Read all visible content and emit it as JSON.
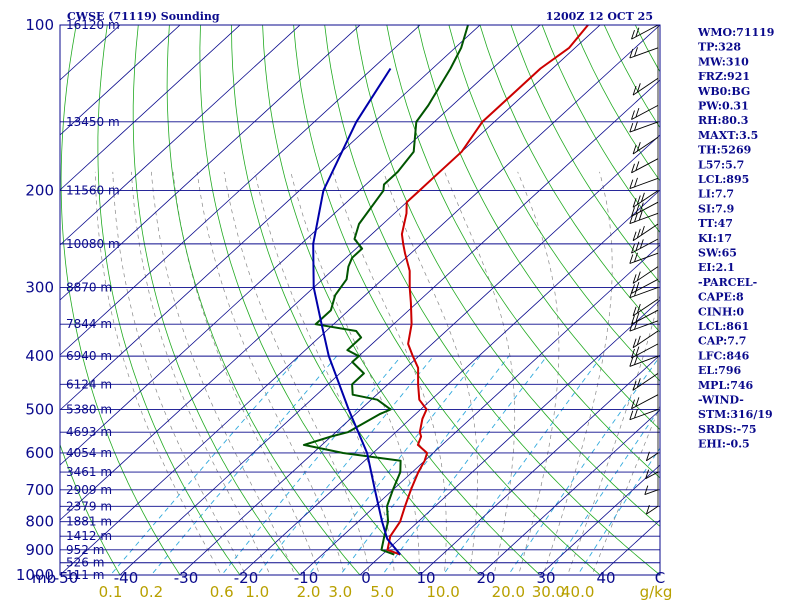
{
  "title_left": "CWSE (71119) Sounding",
  "title_right": "1200Z 12 OCT 25",
  "chart_data": {
    "type": "skew-t",
    "pressure_axis": {
      "unit_label": "mb",
      "range": [
        1000,
        100
      ],
      "ticks": [
        {
          "p": 100,
          "label": "100"
        },
        {
          "p": 200,
          "label": "200"
        },
        {
          "p": 300,
          "label": "300"
        },
        {
          "p": 400,
          "label": "400"
        },
        {
          "p": 500,
          "label": "500"
        },
        {
          "p": 600,
          "label": "600"
        },
        {
          "p": 700,
          "label": "700"
        },
        {
          "p": 800,
          "label": "800"
        },
        {
          "p": 900,
          "label": "900"
        },
        {
          "p": 1000,
          "label": "1000"
        }
      ]
    },
    "heights": [
      {
        "p": 100,
        "label": "16120 m"
      },
      {
        "p": 150,
        "label": "13450 m"
      },
      {
        "p": 200,
        "label": "11560 m"
      },
      {
        "p": 250,
        "label": "10080 m"
      },
      {
        "p": 300,
        "label": "8870 m"
      },
      {
        "p": 350,
        "label": "7844 m"
      },
      {
        "p": 400,
        "label": "6940 m"
      },
      {
        "p": 450,
        "label": "6124 m"
      },
      {
        "p": 500,
        "label": "5380 m"
      },
      {
        "p": 550,
        "label": "4693 m"
      },
      {
        "p": 600,
        "label": "4054 m"
      },
      {
        "p": 650,
        "label": "3461 m"
      },
      {
        "p": 700,
        "label": "2909 m"
      },
      {
        "p": 750,
        "label": "2379 m"
      },
      {
        "p": 800,
        "label": "1881 m"
      },
      {
        "p": 850,
        "label": "1412 m"
      },
      {
        "p": 900,
        "label": "952 m"
      },
      {
        "p": 950,
        "label": "526 m"
      },
      {
        "p": 1000,
        "label": "111 m"
      }
    ],
    "temperature_axis": {
      "range": [
        -50,
        50
      ],
      "ticks": [
        "-50",
        "-40",
        "-30",
        "-20",
        "-10",
        "0",
        "10",
        "20",
        "30",
        "40"
      ],
      "wind_scale_label": "C"
    },
    "mixing_ratio_labels": [
      "0.1",
      "0.2",
      "0.6",
      "1.0",
      "2.0",
      "3.0",
      "5.0",
      "10.0",
      "20.0",
      "30.0",
      "40.0"
    ],
    "mixing_ratio_unit": "g/kg",
    "series": [
      {
        "name": "temperature",
        "color": "#cc0000",
        "points": [
          [
            918,
            3
          ],
          [
            900,
            0
          ],
          [
            850,
            -2
          ],
          [
            800,
            -3
          ],
          [
            750,
            -5
          ],
          [
            700,
            -7
          ],
          [
            650,
            -9
          ],
          [
            620,
            -10
          ],
          [
            600,
            -11
          ],
          [
            580,
            -14
          ],
          [
            560,
            -15
          ],
          [
            550,
            -16
          ],
          [
            520,
            -18
          ],
          [
            500,
            -19
          ],
          [
            480,
            -22
          ],
          [
            450,
            -25
          ],
          [
            420,
            -28
          ],
          [
            400,
            -31
          ],
          [
            380,
            -34
          ],
          [
            350,
            -37
          ],
          [
            320,
            -41
          ],
          [
            300,
            -44
          ],
          [
            280,
            -47
          ],
          [
            260,
            -51
          ],
          [
            250,
            -53
          ],
          [
            240,
            -55
          ],
          [
            220,
            -58
          ],
          [
            210,
            -60
          ],
          [
            200,
            -60
          ],
          [
            190,
            -60
          ],
          [
            170,
            -60
          ],
          [
            150,
            -62
          ],
          [
            140,
            -62
          ],
          [
            120,
            -62
          ],
          [
            110,
            -61
          ],
          [
            100,
            -62
          ]
        ]
      },
      {
        "name": "dewpoint",
        "color": "#005500",
        "points": [
          [
            918,
            2
          ],
          [
            900,
            -1
          ],
          [
            850,
            -3
          ],
          [
            800,
            -5
          ],
          [
            750,
            -8
          ],
          [
            700,
            -10
          ],
          [
            650,
            -12
          ],
          [
            620,
            -14
          ],
          [
            600,
            -25
          ],
          [
            580,
            -33
          ],
          [
            560,
            -30
          ],
          [
            550,
            -28
          ],
          [
            530,
            -27
          ],
          [
            510,
            -26
          ],
          [
            500,
            -25
          ],
          [
            480,
            -29
          ],
          [
            470,
            -34
          ],
          [
            450,
            -36
          ],
          [
            430,
            -36
          ],
          [
            410,
            -40
          ],
          [
            400,
            -40
          ],
          [
            390,
            -43
          ],
          [
            370,
            -43
          ],
          [
            360,
            -45
          ],
          [
            350,
            -53
          ],
          [
            330,
            -53
          ],
          [
            310,
            -55
          ],
          [
            290,
            -56
          ],
          [
            275,
            -58
          ],
          [
            265,
            -59
          ],
          [
            255,
            -59
          ],
          [
            245,
            -62
          ],
          [
            230,
            -64
          ],
          [
            200,
            -66
          ],
          [
            195,
            -67
          ],
          [
            185,
            -67
          ],
          [
            170,
            -68
          ],
          [
            150,
            -73
          ],
          [
            140,
            -74
          ],
          [
            120,
            -77
          ],
          [
            110,
            -79
          ],
          [
            100,
            -82
          ]
        ]
      },
      {
        "name": "parcel",
        "color": "#0000aa",
        "points": [
          [
            918,
            3
          ],
          [
            860,
            -2
          ],
          [
            800,
            -6
          ],
          [
            700,
            -13
          ],
          [
            600,
            -21
          ],
          [
            500,
            -32
          ],
          [
            400,
            -45
          ],
          [
            350,
            -52
          ],
          [
            300,
            -60
          ],
          [
            250,
            -68
          ],
          [
            200,
            -76
          ],
          [
            150,
            -83
          ],
          [
            120,
            -87
          ]
        ]
      }
    ],
    "wind_barbs": {
      "note": "wind barbs plotted along right edge",
      "levels_mb": [
        100,
        110,
        125,
        140,
        150,
        160,
        175,
        190,
        200,
        210,
        220,
        230,
        245,
        260,
        275,
        290,
        300,
        315,
        330,
        345,
        360,
        380,
        400,
        430,
        470,
        500,
        600,
        650,
        700,
        750
      ]
    }
  },
  "indices": [
    {
      "key": "WMO",
      "value": "71119"
    },
    {
      "key": "TP",
      "value": "328"
    },
    {
      "key": "MW",
      "value": "310"
    },
    {
      "key": "FRZ",
      "value": "921"
    },
    {
      "key": "WB0",
      "value": "BG"
    },
    {
      "key": "PW",
      "value": "0.31"
    },
    {
      "key": "RH",
      "value": "80.3"
    },
    {
      "key": "MAXT",
      "value": "3.5"
    },
    {
      "key": "TH",
      "value": "5269"
    },
    {
      "key": "L57",
      "value": "5.7"
    },
    {
      "key": "LCL",
      "value": "895"
    },
    {
      "key": "LI",
      "value": "7.7"
    },
    {
      "key": "SI",
      "value": "7.9"
    },
    {
      "key": "TT",
      "value": "47"
    },
    {
      "key": "KI",
      "value": "17"
    },
    {
      "key": "SW",
      "value": "65"
    },
    {
      "key": "EI",
      "value": "2.1"
    },
    {
      "key": "",
      "value": "-PARCEL-"
    },
    {
      "key": "CAPE",
      "value": "8"
    },
    {
      "key": "CINH",
      "value": "0"
    },
    {
      "key": "LCL",
      "value": "861"
    },
    {
      "key": "CAP",
      "value": "7.7"
    },
    {
      "key": "LFC",
      "value": "846"
    },
    {
      "key": "EL",
      "value": "796"
    },
    {
      "key": "MPL",
      "value": "746"
    },
    {
      "key": "",
      "value": "-WIND-"
    },
    {
      "key": "STM",
      "value": "316/19"
    },
    {
      "key": "SRDS",
      "value": "-75"
    },
    {
      "key": "EHI",
      "value": "-0.5"
    }
  ],
  "colors": {
    "isobar": "#0a0a8c",
    "skewed_isotherm": "#0a0a8c",
    "dry_adiabat": "#22aa22",
    "moist_adiabat": "#888888",
    "mixing_ratio": "#33aadd",
    "text": "#0a0a8c"
  }
}
